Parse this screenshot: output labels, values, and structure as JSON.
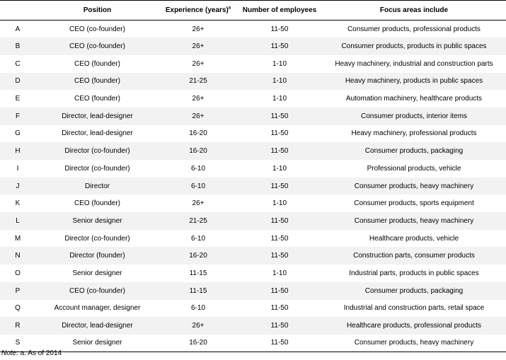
{
  "table": {
    "headers": {
      "id": "",
      "position": "Position",
      "experience": "Experience (years)",
      "experience_sup": "a",
      "employees": "Number of employees",
      "focus": "Focus areas include"
    },
    "rows": [
      {
        "id": "A",
        "position": "CEO (co-founder)",
        "experience": "26+",
        "employees": "11-50",
        "focus": "Consumer products, professional products"
      },
      {
        "id": "B",
        "position": "CEO (co-founder)",
        "experience": "26+",
        "employees": "11-50",
        "focus": "Consumer products, products in public spaces"
      },
      {
        "id": "C",
        "position": "CEO (founder)",
        "experience": "26+",
        "employees": "1-10",
        "focus": "Heavy machinery, industrial and construction parts"
      },
      {
        "id": "D",
        "position": "CEO (founder)",
        "experience": "21-25",
        "employees": "1-10",
        "focus": "Heavy machinery, products in public spaces"
      },
      {
        "id": "E",
        "position": "CEO (founder)",
        "experience": "26+",
        "employees": "1-10",
        "focus": "Automation machinery, healthcare products"
      },
      {
        "id": "F",
        "position": "Director, lead-designer",
        "experience": "26+",
        "employees": "11-50",
        "focus": "Consumer products, interior items"
      },
      {
        "id": "G",
        "position": "Director, lead-designer",
        "experience": "16-20",
        "employees": "11-50",
        "focus": "Heavy machinery, professional products"
      },
      {
        "id": "H",
        "position": "Director (co-founder)",
        "experience": "16-20",
        "employees": "11-50",
        "focus": "Consumer products, packaging"
      },
      {
        "id": "I",
        "position": "Director (co-founder)",
        "experience": "6-10",
        "employees": "1-10",
        "focus": "Professional products, vehicle"
      },
      {
        "id": "J",
        "position": "Director",
        "experience": "6-10",
        "employees": "11-50",
        "focus": "Consumer products, heavy machinery"
      },
      {
        "id": "K",
        "position": "CEO (founder)",
        "experience": "26+",
        "employees": "1-10",
        "focus": "Consumer products, sports equipment"
      },
      {
        "id": "L",
        "position": "Senior designer",
        "experience": "21-25",
        "employees": "11-50",
        "focus": "Consumer products, heavy machinery"
      },
      {
        "id": "M",
        "position": "Director (co-founder)",
        "experience": "6-10",
        "employees": "11-50",
        "focus": "Healthcare products, vehicle"
      },
      {
        "id": "N",
        "position": "Director (founder)",
        "experience": "16-20",
        "employees": "11-50",
        "focus": "Construction parts, consumer products"
      },
      {
        "id": "O",
        "position": "Senior designer",
        "experience": "11-15",
        "employees": "1-10",
        "focus": "Industrial parts, products in public spaces"
      },
      {
        "id": "P",
        "position": "CEO (co-founder)",
        "experience": "11-15",
        "employees": "11-50",
        "focus": "Consumer products, packaging"
      },
      {
        "id": "Q",
        "position": "Account manager, designer",
        "experience": "6-10",
        "employees": "11-50",
        "focus": "Industrial and construction parts, retail space"
      },
      {
        "id": "R",
        "position": "Director, lead-designer",
        "experience": "26+",
        "employees": "11-50",
        "focus": "Healthcare products, professional products"
      },
      {
        "id": "S",
        "position": "Senior designer",
        "experience": "16-20",
        "employees": "11-50",
        "focus": "Consumer products, heavy machinery"
      }
    ]
  },
  "note": {
    "label": "Note:",
    "text": " a. As of 2014"
  }
}
